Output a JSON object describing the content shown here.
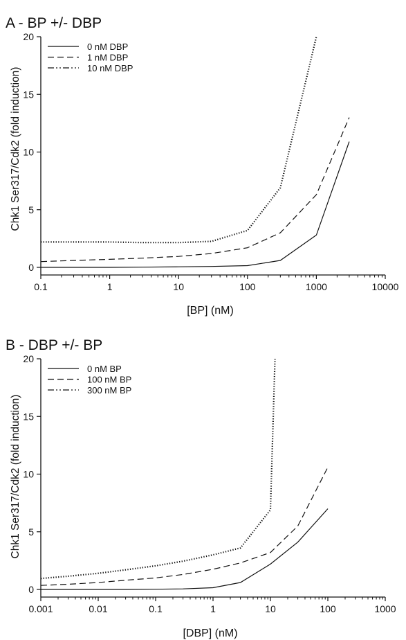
{
  "chart_data": [
    {
      "type": "line",
      "title": "A - BP +/- DBP",
      "xlabel": "[BP] (nM)",
      "ylabel": "Chk1 Ser317/Cdk2 (fold induction)",
      "x_scale": "log",
      "xlim": [
        0.1,
        10000
      ],
      "ylim": [
        0,
        20
      ],
      "x_ticks": [
        "0.1",
        "1",
        "10",
        "100",
        "1000",
        "10000"
      ],
      "y_ticks": [
        "0",
        "5",
        "10",
        "15",
        "20"
      ],
      "legend_position": "top-left",
      "series": [
        {
          "name": "0 nM DBP",
          "style": "solid",
          "x": [
            0.1,
            0.3,
            1,
            3,
            10,
            30,
            100,
            300,
            1000,
            3000
          ],
          "y": [
            0,
            0,
            0,
            0.02,
            0.05,
            0.08,
            0.15,
            0.6,
            2.8,
            10.9
          ]
        },
        {
          "name": "1 nM DBP",
          "style": "dashed",
          "x": [
            0.1,
            0.3,
            1,
            3,
            10,
            30,
            100,
            300,
            1000,
            3000
          ],
          "y": [
            0.5,
            0.6,
            0.7,
            0.8,
            0.95,
            1.2,
            1.7,
            3.0,
            6.3,
            13.0
          ]
        },
        {
          "name": "10 nM DBP",
          "style": "dashdotdot",
          "x": [
            0.1,
            0.3,
            1,
            3,
            10,
            30,
            100,
            300,
            1000
          ],
          "y": [
            2.2,
            2.2,
            2.2,
            2.15,
            2.15,
            2.25,
            3.2,
            6.9,
            20.0
          ]
        }
      ]
    },
    {
      "type": "line",
      "title": "B - DBP +/- BP",
      "xlabel": "[DBP] (nM)",
      "ylabel": "Chk1 Ser317/Cdk2 (fold induction)",
      "x_scale": "log",
      "xlim": [
        0.001,
        1000
      ],
      "ylim": [
        0,
        20
      ],
      "x_ticks": [
        "0.001",
        "0.01",
        "0.1",
        "1",
        "10",
        "100",
        "1000"
      ],
      "y_ticks": [
        "0",
        "5",
        "10",
        "15",
        "20"
      ],
      "legend_position": "top-left",
      "series": [
        {
          "name": "0 nM BP",
          "style": "solid",
          "x": [
            0.001,
            0.003,
            0.01,
            0.03,
            0.1,
            0.3,
            1,
            3,
            10,
            30,
            100
          ],
          "y": [
            0,
            0,
            0,
            0,
            0.02,
            0.05,
            0.15,
            0.6,
            2.2,
            4.1,
            7.0
          ]
        },
        {
          "name": "100 nM BP",
          "style": "dashed",
          "x": [
            0.001,
            0.003,
            0.01,
            0.03,
            0.1,
            0.3,
            1,
            3,
            10,
            30,
            100
          ],
          "y": [
            0.35,
            0.45,
            0.6,
            0.8,
            1.0,
            1.3,
            1.75,
            2.3,
            3.2,
            5.5,
            10.6
          ]
        },
        {
          "name": "300 nM BP",
          "style": "dashdotdot",
          "x": [
            0.001,
            0.003,
            0.01,
            0.03,
            0.1,
            0.3,
            1,
            3,
            10,
            12
          ],
          "y": [
            0.95,
            1.15,
            1.4,
            1.7,
            2.05,
            2.45,
            3.0,
            3.6,
            6.9,
            20.0
          ]
        }
      ]
    }
  ]
}
